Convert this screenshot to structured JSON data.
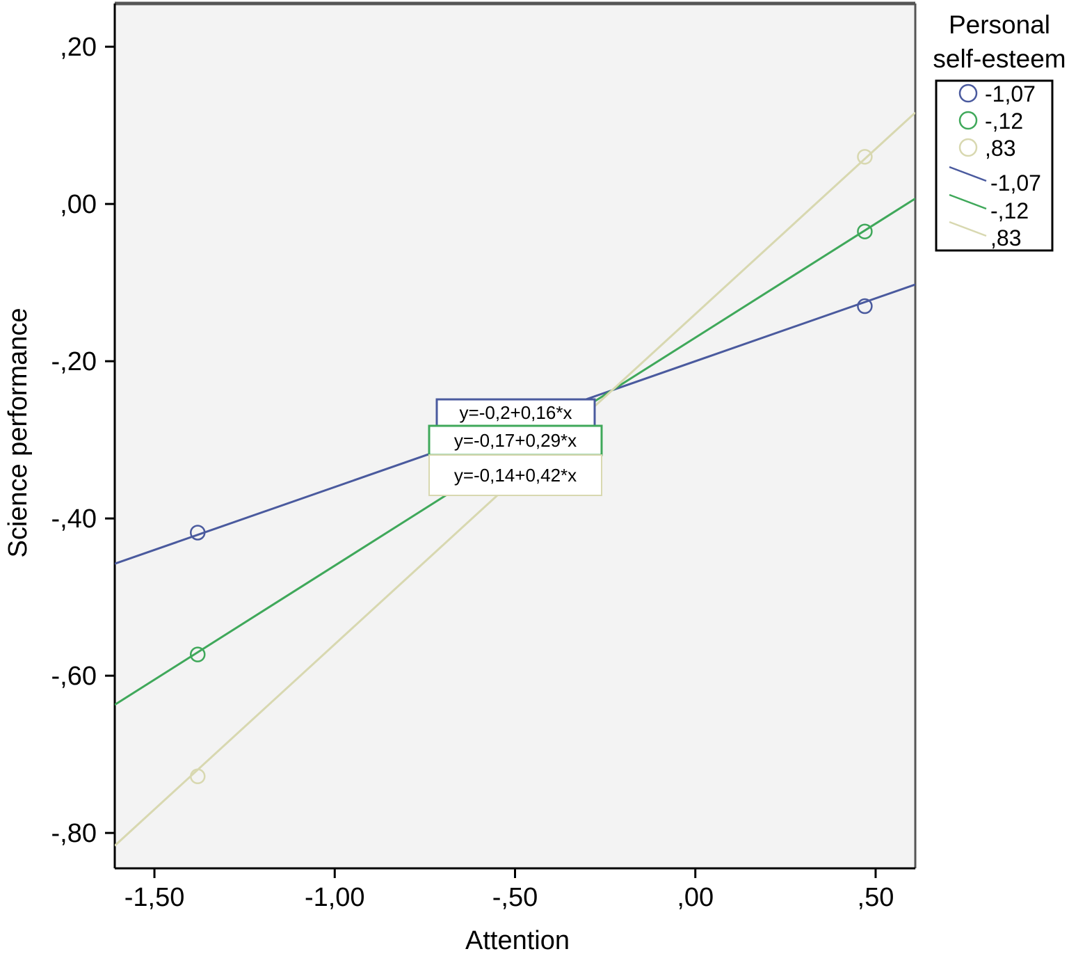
{
  "chart_data": {
    "type": "line",
    "xlabel": "Attention",
    "ylabel": "Science performance",
    "xlim": [
      -1.61,
      0.61
    ],
    "ylim": [
      -0.845,
      0.255
    ],
    "x_ticks": [
      {
        "value": -1.5,
        "label": "-1,50"
      },
      {
        "value": -1.0,
        "label": "-1,00"
      },
      {
        "value": -0.5,
        "label": "-,50"
      },
      {
        "value": 0.0,
        "label": ",00"
      },
      {
        "value": 0.5,
        "label": ",50"
      }
    ],
    "y_ticks": [
      {
        "value": 0.2,
        "label": ",20"
      },
      {
        "value": 0.0,
        "label": ",00"
      },
      {
        "value": -0.2,
        "label": "-,20"
      },
      {
        "value": -0.4,
        "label": "-,40"
      },
      {
        "value": -0.6,
        "label": "-,60"
      },
      {
        "value": -0.8,
        "label": "-,80"
      }
    ],
    "legend": {
      "title": "Personal self-esteem",
      "title_lines": [
        "Personal",
        "self-esteem"
      ],
      "position": "right"
    },
    "series": [
      {
        "name": "-1,07",
        "color": "#4a5a9e",
        "intercept": -0.2,
        "slope": 0.16,
        "points": [
          {
            "x": -1.38,
            "y": -0.418
          },
          {
            "x": 0.47,
            "y": -0.13
          }
        ],
        "equation": "y=-0,2+0,16*x"
      },
      {
        "name": "-,12",
        "color": "#3fa85a",
        "intercept": -0.17,
        "slope": 0.29,
        "points": [
          {
            "x": -1.38,
            "y": -0.573
          },
          {
            "x": 0.47,
            "y": -0.035
          }
        ],
        "equation": "y=-0,17+0,29*x"
      },
      {
        "name": ",83",
        "color": "#d8d8b0",
        "intercept": -0.14,
        "slope": 0.42,
        "points": [
          {
            "x": -1.38,
            "y": -0.728
          },
          {
            "x": 0.47,
            "y": 0.06
          }
        ],
        "equation": "y=-0,14+0,42*x"
      }
    ]
  }
}
